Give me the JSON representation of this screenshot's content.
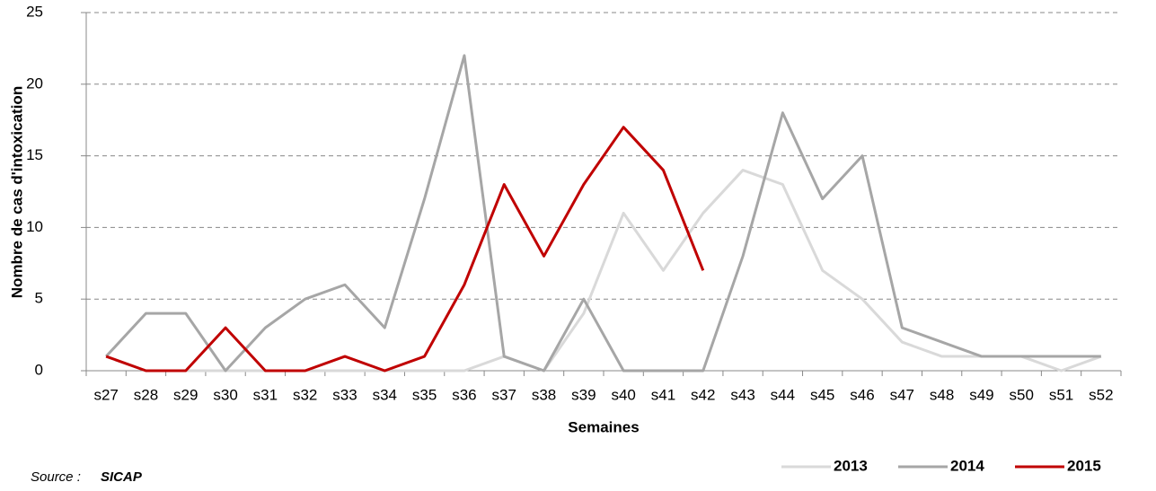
{
  "chart_data": {
    "type": "line",
    "y_axis_label": "Nombre de cas d'intoxication",
    "x_axis_label": "Semaines",
    "source_label": "Source :",
    "source_name": "SICAP",
    "categories": [
      "s27",
      "s28",
      "s29",
      "s30",
      "s31",
      "s32",
      "s33",
      "s34",
      "s35",
      "s36",
      "s37",
      "s38",
      "s39",
      "s40",
      "s41",
      "s42",
      "s43",
      "s44",
      "s45",
      "s46",
      "s47",
      "s48",
      "s49",
      "s50",
      "s51",
      "s52"
    ],
    "series": [
      {
        "name": "2013",
        "color": "#d9d9d9",
        "values": [
          1,
          0,
          0,
          0,
          0,
          0,
          0,
          0,
          0,
          0,
          1,
          0,
          4,
          11,
          7,
          11,
          14,
          13,
          7,
          5,
          2,
          1,
          1,
          1,
          0,
          1
        ]
      },
      {
        "name": "2014",
        "color": "#a6a6a6",
        "values": [
          1,
          4,
          4,
          0,
          3,
          5,
          6,
          3,
          12,
          22,
          1,
          0,
          5,
          0,
          0,
          0,
          8,
          18,
          12,
          15,
          3,
          2,
          1,
          1,
          1,
          1
        ]
      },
      {
        "name": "2015",
        "color": "#c00000",
        "values": [
          1,
          0,
          0,
          3,
          0,
          0,
          1,
          0,
          1,
          6,
          13,
          8,
          13,
          17,
          14,
          7,
          null,
          null,
          null,
          null,
          null,
          null,
          null,
          null,
          null,
          null
        ]
      }
    ],
    "ylim": [
      0,
      25
    ],
    "yticks": [
      0,
      5,
      10,
      15,
      20,
      25
    ],
    "grid": true,
    "legend": "bottom-right"
  }
}
